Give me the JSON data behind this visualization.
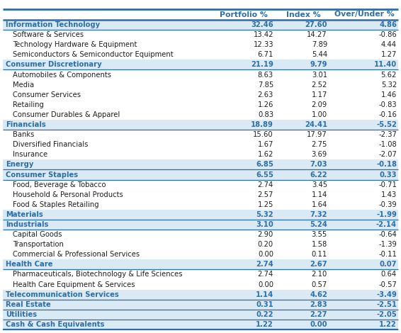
{
  "headers": [
    "Portfolio %",
    "Index %",
    "Over/Under %"
  ],
  "rows": [
    {
      "label": "Information Technology",
      "portfolio": "32.46",
      "index": "27.60",
      "over_under": "4.86",
      "is_header": true
    },
    {
      "label": "Software & Services",
      "portfolio": "13.42",
      "index": "14.27",
      "over_under": "-0.86",
      "is_header": false
    },
    {
      "label": "Technology Hardware & Equipment",
      "portfolio": "12.33",
      "index": "7.89",
      "over_under": "4.44",
      "is_header": false
    },
    {
      "label": "Semiconductors & Semiconductor Equipment",
      "portfolio": "6.71",
      "index": "5.44",
      "over_under": "1.27",
      "is_header": false
    },
    {
      "label": "Consumer Discretionary",
      "portfolio": "21.19",
      "index": "9.79",
      "over_under": "11.40",
      "is_header": true
    },
    {
      "label": "Automobiles & Components",
      "portfolio": "8.63",
      "index": "3.01",
      "over_under": "5.62",
      "is_header": false
    },
    {
      "label": "Media",
      "portfolio": "7.85",
      "index": "2.52",
      "over_under": "5.32",
      "is_header": false
    },
    {
      "label": "Consumer Services",
      "portfolio": "2.63",
      "index": "1.17",
      "over_under": "1.46",
      "is_header": false
    },
    {
      "label": "Retailing",
      "portfolio": "1.26",
      "index": "2.09",
      "over_under": "-0.83",
      "is_header": false
    },
    {
      "label": "Consumer Durables & Apparel",
      "portfolio": "0.83",
      "index": "1.00",
      "over_under": "-0.16",
      "is_header": false
    },
    {
      "label": "Financials",
      "portfolio": "18.89",
      "index": "24.41",
      "over_under": "-5.52",
      "is_header": true
    },
    {
      "label": "Banks",
      "portfolio": "15.60",
      "index": "17.97",
      "over_under": "-2.37",
      "is_header": false
    },
    {
      "label": "Diversified Financials",
      "portfolio": "1.67",
      "index": "2.75",
      "over_under": "-1.08",
      "is_header": false
    },
    {
      "label": "Insurance",
      "portfolio": "1.62",
      "index": "3.69",
      "over_under": "-2.07",
      "is_header": false
    },
    {
      "label": "Energy",
      "portfolio": "6.85",
      "index": "7.03",
      "over_under": "-0.18",
      "is_header": true
    },
    {
      "label": "Consumer Staples",
      "portfolio": "6.55",
      "index": "6.22",
      "over_under": "0.33",
      "is_header": true
    },
    {
      "label": "Food, Beverage & Tobacco",
      "portfolio": "2.74",
      "index": "3.45",
      "over_under": "-0.71",
      "is_header": false
    },
    {
      "label": "Household & Personal Products",
      "portfolio": "2.57",
      "index": "1.14",
      "over_under": "1.43",
      "is_header": false
    },
    {
      "label": "Food & Staples Retailing",
      "portfolio": "1.25",
      "index": "1.64",
      "over_under": "-0.39",
      "is_header": false
    },
    {
      "label": "Materials",
      "portfolio": "5.32",
      "index": "7.32",
      "over_under": "-1.99",
      "is_header": true
    },
    {
      "label": "Industrials",
      "portfolio": "3.10",
      "index": "5.24",
      "over_under": "-2.14",
      "is_header": true
    },
    {
      "label": "Capital Goods",
      "portfolio": "2.90",
      "index": "3.55",
      "over_under": "-0.64",
      "is_header": false
    },
    {
      "label": "Transportation",
      "portfolio": "0.20",
      "index": "1.58",
      "over_under": "-1.39",
      "is_header": false
    },
    {
      "label": "Commercial & Professional Services",
      "portfolio": "0.00",
      "index": "0.11",
      "over_under": "-0.11",
      "is_header": false
    },
    {
      "label": "Health Care",
      "portfolio": "2.74",
      "index": "2.67",
      "over_under": "0.07",
      "is_header": true
    },
    {
      "label": "Pharmaceuticals, Biotechnology & Life Sciences",
      "portfolio": "2.74",
      "index": "2.10",
      "over_under": "0.64",
      "is_header": false
    },
    {
      "label": "Health Care Equipment & Services",
      "portfolio": "0.00",
      "index": "0.57",
      "over_under": "-0.57",
      "is_header": false
    },
    {
      "label": "Telecommunication Services",
      "portfolio": "1.14",
      "index": "4.62",
      "over_under": "-3.49",
      "is_header": true
    },
    {
      "label": "Real Estate",
      "portfolio": "0.31",
      "index": "2.83",
      "over_under": "-2.51",
      "is_header": true
    },
    {
      "label": "Utilities",
      "portfolio": "0.22",
      "index": "2.27",
      "over_under": "-2.05",
      "is_header": true
    },
    {
      "label": "Cash & Cash Equivalents",
      "portfolio": "1.22",
      "index": "0.00",
      "over_under": "1.22",
      "is_header": true
    }
  ],
  "blue_color": "#2E6EA6",
  "light_blue_bg": "#DAEAF5",
  "white_bg": "#FFFFFF",
  "text_dark": "#1F1F1F",
  "col_header_fontsize": 7.8,
  "col_label_fontsize": 7.2,
  "col_header_fontsize_bold": true
}
